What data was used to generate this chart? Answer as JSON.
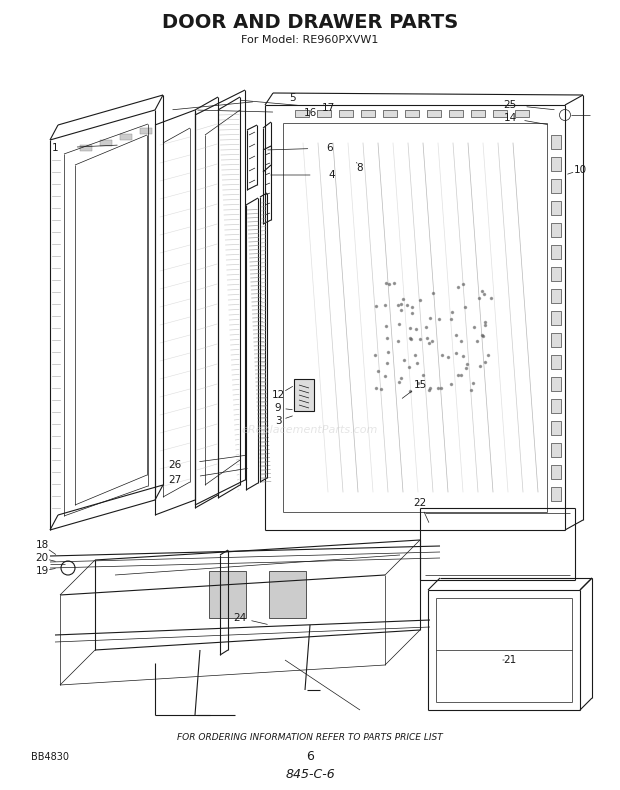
{
  "title": "DOOR AND DRAWER PARTS",
  "subtitle": "For Model: RE960PXVW1",
  "footer_text": "FOR ORDERING INFORMATION REFER TO PARTS PRICE LIST",
  "page_number": "6",
  "diagram_code": "845-C-6",
  "part_number_bottom_left": "BB4830",
  "background_color": "#ffffff",
  "line_color": "#1a1a1a",
  "watermark_text": "eReplacementParts.com"
}
